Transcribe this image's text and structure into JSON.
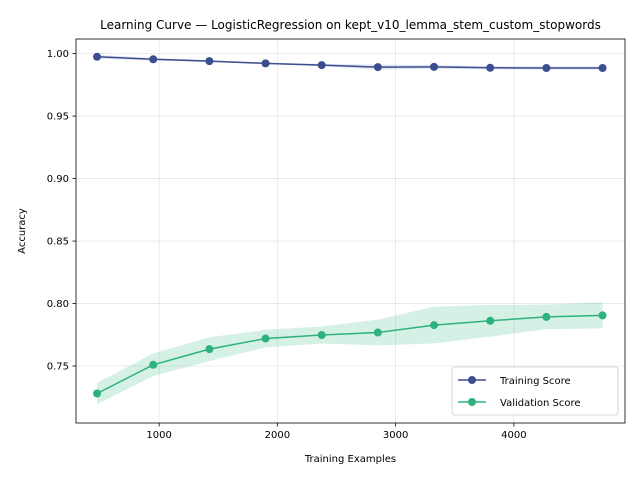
{
  "chart_data": {
    "type": "line",
    "title": "Learning Curve — LogisticRegression on kept_v10_lemma_stem_custom_stopwords",
    "xlabel": "Training Examples",
    "ylabel": "Accuracy",
    "xlim": [
      297,
      4940
    ],
    "ylim": [
      0.7044,
      1.0117
    ],
    "xticks": [
      1000,
      2000,
      3000,
      4000
    ],
    "xtick_labels": [
      "1000",
      "2000",
      "3000",
      "4000"
    ],
    "yticks": [
      0.75,
      0.8,
      0.85,
      0.9,
      0.95,
      1.0
    ],
    "ytick_labels": [
      "0.75",
      "0.80",
      "0.85",
      "0.90",
      "0.95",
      "1.00"
    ],
    "grid": true,
    "legend_position": "bottom-right",
    "x": [
      475,
      950,
      1425,
      1900,
      2375,
      2850,
      3325,
      3800,
      4275,
      4750
    ],
    "series": [
      {
        "name": "Training Score",
        "color": "#3b4f8f",
        "band_color": "#6f7fc0",
        "values": [
          0.9975,
          0.9955,
          0.994,
          0.9922,
          0.9908,
          0.9892,
          0.9894,
          0.9887,
          0.9885,
          0.9885
        ],
        "lower": [
          0.996,
          0.9945,
          0.9932,
          0.9917,
          0.9898,
          0.9872,
          0.988,
          0.9874,
          0.9872,
          0.9872
        ],
        "upper": [
          0.999,
          0.9965,
          0.9948,
          0.9927,
          0.9918,
          0.9912,
          0.9908,
          0.99,
          0.9898,
          0.9898
        ]
      },
      {
        "name": "Validation Score",
        "color": "#2db27d",
        "band_color": "#2db27d",
        "values": [
          0.728,
          0.751,
          0.7635,
          0.772,
          0.7748,
          0.7768,
          0.7827,
          0.7862,
          0.7893,
          0.7905
        ],
        "lower": [
          0.7195,
          0.742,
          0.754,
          0.765,
          0.768,
          0.7665,
          0.768,
          0.7735,
          0.7795,
          0.78
        ],
        "upper": [
          0.7365,
          0.76,
          0.773,
          0.779,
          0.7816,
          0.7871,
          0.7974,
          0.7989,
          0.7991,
          0.801
        ]
      }
    ]
  }
}
